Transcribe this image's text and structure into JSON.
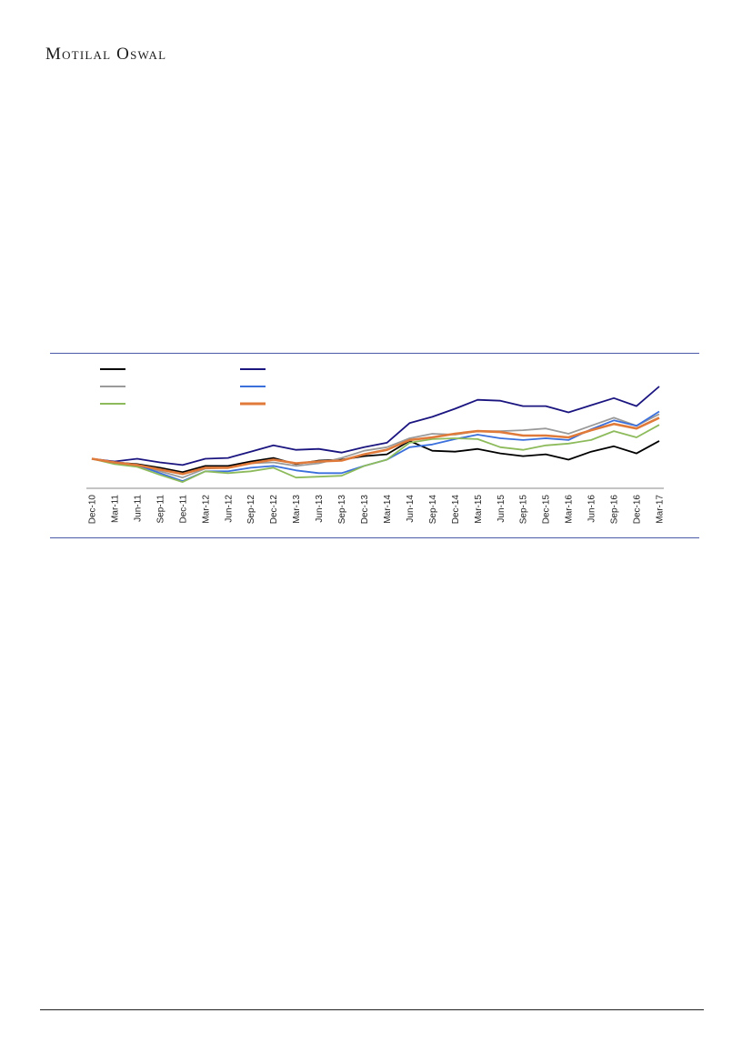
{
  "header": {
    "brand": "Motilal Oswal"
  },
  "chart_data": {
    "type": "line",
    "categories": [
      "Dec-10",
      "Mar-11",
      "Jun-11",
      "Sep-11",
      "Dec-11",
      "Mar-12",
      "Jun-12",
      "Sep-12",
      "Dec-12",
      "Mar-13",
      "Jun-13",
      "Sep-13",
      "Dec-13",
      "Mar-14",
      "Jun-14",
      "Sep-14",
      "Dec-14",
      "Mar-15",
      "Jun-15",
      "Sep-15",
      "Dec-15",
      "Mar-16",
      "Jun-16",
      "Sep-16",
      "Dec-16",
      "Mar-17"
    ],
    "ylim": [
      0,
      100
    ],
    "grid": false,
    "legend_position": "top-left",
    "series": [
      {
        "color": "#000000",
        "values": [
          30,
          26,
          24,
          20,
          15,
          22,
          22,
          27,
          31,
          24,
          28,
          29,
          33,
          35,
          50,
          39,
          38,
          41,
          36,
          33,
          35,
          29,
          38,
          44,
          36,
          50
        ]
      },
      {
        "color": "#1b1580",
        "values": [
          30,
          27,
          30,
          26,
          23,
          30,
          31,
          38,
          45,
          40,
          41,
          37,
          43,
          48,
          70,
          77,
          86,
          96,
          95,
          89,
          89,
          82,
          90,
          98,
          89,
          111
        ]
      },
      {
        "color": "#9a9a9a",
        "values": [
          30,
          25,
          22,
          16,
          9,
          19,
          20,
          25,
          26,
          22,
          25,
          31,
          39,
          43,
          53,
          58,
          57,
          61,
          61,
          62,
          64,
          58,
          67,
          76,
          67,
          80
        ]
      },
      {
        "color": "#3a6fdc",
        "values": [
          30,
          25,
          23,
          14,
          5,
          16,
          16,
          20,
          22,
          17,
          14,
          14,
          22,
          29,
          43,
          46,
          52,
          57,
          53,
          51,
          53,
          51,
          63,
          73,
          67,
          83
        ]
      },
      {
        "color": "#8dbb5c",
        "values": [
          30,
          24,
          21,
          12,
          4,
          16,
          14,
          16,
          20,
          9,
          10,
          11,
          22,
          29,
          48,
          52,
          53,
          52,
          43,
          40,
          45,
          47,
          51,
          61,
          54,
          68
        ]
      },
      {
        "color": "#e07a3a",
        "values": [
          30,
          26,
          23,
          18,
          13,
          20,
          20,
          25,
          29,
          25,
          27,
          28,
          35,
          40,
          51,
          54,
          58,
          61,
          60,
          56,
          56,
          54,
          62,
          69,
          64,
          76
        ]
      }
    ]
  }
}
